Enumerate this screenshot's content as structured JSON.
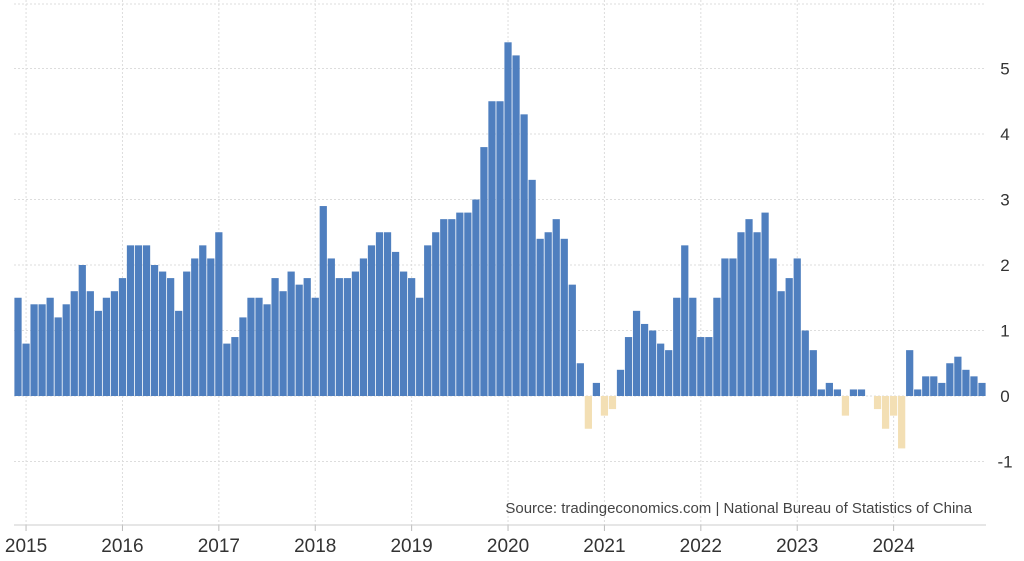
{
  "chart_data": {
    "type": "bar",
    "x_start": "2014-12",
    "x_end": "2024-11",
    "x_ticks": [
      "2015",
      "2016",
      "2017",
      "2018",
      "2019",
      "2020",
      "2021",
      "2022",
      "2023",
      "2024"
    ],
    "y_ticks": [
      "-1",
      "0",
      "1",
      "2",
      "3",
      "4",
      "5"
    ],
    "ylim": [
      -2,
      6
    ],
    "grid": true,
    "colors": {
      "positive": "#4f7fbf",
      "negative": "#f3dfb4"
    },
    "values": [
      1.5,
      0.8,
      1.4,
      1.4,
      1.5,
      1.2,
      1.4,
      1.6,
      2.0,
      1.6,
      1.3,
      1.5,
      1.6,
      1.8,
      2.3,
      2.3,
      2.3,
      2.0,
      1.9,
      1.8,
      1.3,
      1.9,
      2.1,
      2.3,
      2.1,
      2.5,
      0.8,
      0.9,
      1.2,
      1.5,
      1.5,
      1.4,
      1.8,
      1.6,
      1.9,
      1.7,
      1.8,
      1.5,
      2.9,
      2.1,
      1.8,
      1.8,
      1.9,
      2.1,
      2.3,
      2.5,
      2.5,
      2.2,
      1.9,
      1.8,
      1.5,
      2.3,
      2.5,
      2.7,
      2.7,
      2.8,
      2.8,
      3.0,
      3.8,
      4.5,
      4.5,
      5.4,
      5.2,
      4.3,
      3.3,
      2.4,
      2.5,
      2.7,
      2.4,
      1.7,
      0.5,
      -0.5,
      0.2,
      -0.3,
      -0.2,
      0.4,
      0.9,
      1.3,
      1.1,
      1.0,
      0.8,
      0.7,
      1.5,
      2.3,
      1.5,
      0.9,
      0.9,
      1.5,
      2.1,
      2.1,
      2.5,
      2.7,
      2.5,
      2.8,
      2.1,
      1.6,
      1.8,
      2.1,
      1.0,
      0.7,
      0.1,
      0.2,
      0.1,
      -0.3,
      0.1,
      0.1,
      0.0,
      -0.2,
      -0.5,
      -0.3,
      -0.8,
      0.7,
      0.1,
      0.3,
      0.3,
      0.2,
      0.5,
      0.6,
      0.4,
      0.3,
      0.2
    ]
  },
  "source_text": "Source: tradingeconomics.com | National Bureau of Statistics of China"
}
